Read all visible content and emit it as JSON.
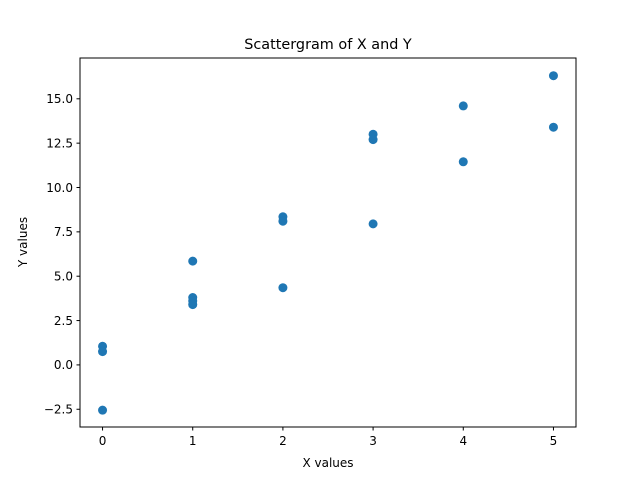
{
  "chart_data": {
    "type": "scatter",
    "title": "Scattergram of X and Y",
    "xlabel": "X values",
    "ylabel": "Y values",
    "xlim": [
      -0.25,
      5.25
    ],
    "ylim": [
      -3.5,
      17.3
    ],
    "xticks": [
      0,
      1,
      2,
      3,
      4,
      5
    ],
    "xtick_labels": [
      "0",
      "1",
      "2",
      "3",
      "4",
      "5"
    ],
    "yticks": [
      -2.5,
      0.0,
      2.5,
      5.0,
      7.5,
      10.0,
      12.5,
      15.0
    ],
    "ytick_labels": [
      "−2.5",
      "0.0",
      "2.5",
      "5.0",
      "7.5",
      "10.0",
      "12.5",
      "15.0"
    ],
    "grid": false,
    "series": [
      {
        "color": "#1f77b4",
        "points": [
          {
            "x": 0,
            "y": 1.05
          },
          {
            "x": 0,
            "y": 0.75
          },
          {
            "x": 0,
            "y": -2.55
          },
          {
            "x": 1,
            "y": 5.85
          },
          {
            "x": 1,
            "y": 3.8
          },
          {
            "x": 1,
            "y": 3.6
          },
          {
            "x": 1,
            "y": 3.4
          },
          {
            "x": 2,
            "y": 8.35
          },
          {
            "x": 2,
            "y": 8.1
          },
          {
            "x": 2,
            "y": 4.35
          },
          {
            "x": 3,
            "y": 13.0
          },
          {
            "x": 3,
            "y": 12.7
          },
          {
            "x": 3,
            "y": 7.95
          },
          {
            "x": 4,
            "y": 14.6
          },
          {
            "x": 4,
            "y": 11.45
          },
          {
            "x": 5,
            "y": 16.3
          },
          {
            "x": 5,
            "y": 13.4
          }
        ]
      }
    ]
  }
}
